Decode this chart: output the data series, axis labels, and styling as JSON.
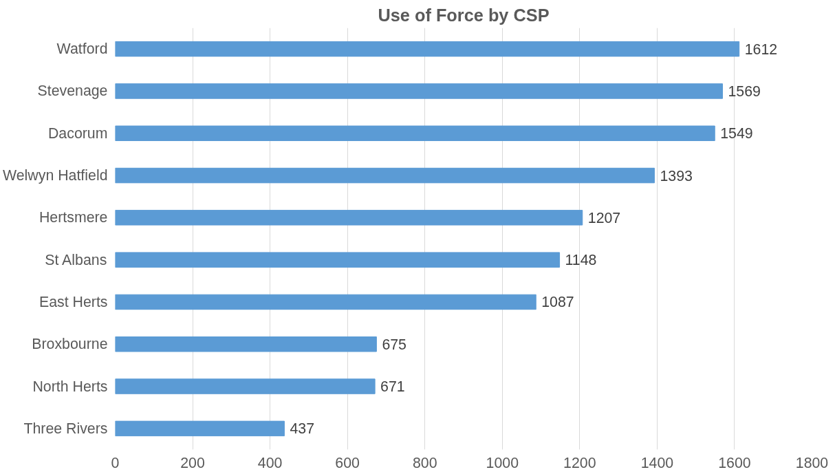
{
  "chart_data": {
    "type": "bar",
    "orientation": "horizontal",
    "title": "Use of Force by CSP",
    "categories": [
      "Watford",
      "Stevenage",
      "Dacorum",
      "Welwyn Hatfield",
      "Hertsmere",
      "St Albans",
      "East Herts",
      "Broxbourne",
      "North Herts",
      "Three Rivers"
    ],
    "values": [
      1612,
      1569,
      1549,
      1393,
      1207,
      1148,
      1087,
      675,
      671,
      437
    ],
    "color": "#5b9bd5",
    "xlim": [
      0,
      1800
    ],
    "xticks": [
      0,
      200,
      400,
      600,
      800,
      1000,
      1200,
      1400,
      1600,
      1800
    ],
    "grid": "x",
    "data_labels": true
  }
}
